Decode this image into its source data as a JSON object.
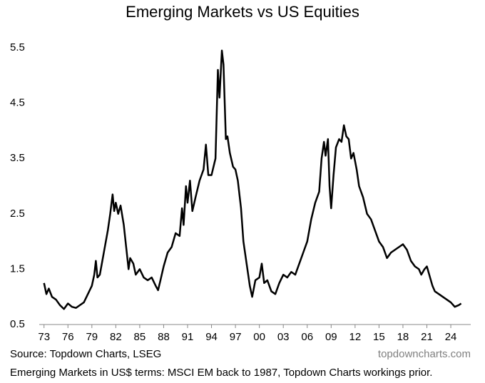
{
  "chart_data": {
    "type": "line",
    "title": "Emerging Markets vs US Equities",
    "source": "Source: Topdown Charts, LSEG",
    "watermark": "topdowncharts.com",
    "note": "Emerging Markets in US$ terms: MSCI EM back to 1987, Topdown Charts workings prior.",
    "x": [
      1973.0,
      1973.3,
      1973.6,
      1974.0,
      1974.5,
      1975.0,
      1975.5,
      1976.0,
      1976.5,
      1977.0,
      1977.5,
      1978.0,
      1978.5,
      1979.0,
      1979.3,
      1979.5,
      1979.7,
      1980.0,
      1980.5,
      1981.0,
      1981.3,
      1981.6,
      1981.8,
      1982.0,
      1982.3,
      1982.6,
      1983.0,
      1983.3,
      1983.6,
      1983.8,
      1984.2,
      1984.5,
      1985.0,
      1985.5,
      1986.0,
      1986.5,
      1987.0,
      1987.3,
      1987.6,
      1988.0,
      1988.5,
      1989.0,
      1989.5,
      1990.0,
      1990.3,
      1990.5,
      1990.8,
      1991.0,
      1991.3,
      1991.6,
      1992.0,
      1992.5,
      1993.0,
      1993.3,
      1993.6,
      1994.0,
      1994.5,
      1994.8,
      1995.0,
      1995.3,
      1995.5,
      1995.8,
      1996.0,
      1996.3,
      1996.7,
      1997.0,
      1997.3,
      1997.7,
      1998.0,
      1998.4,
      1998.8,
      1999.1,
      1999.5,
      2000.0,
      2000.3,
      2000.6,
      2001.0,
      2001.5,
      2002.0,
      2002.5,
      2003.0,
      2003.5,
      2004.0,
      2004.5,
      2005.0,
      2005.5,
      2006.0,
      2006.5,
      2007.0,
      2007.5,
      2007.8,
      2008.1,
      2008.3,
      2008.6,
      2008.8,
      2009.0,
      2009.3,
      2009.6,
      2010.0,
      2010.3,
      2010.6,
      2010.9,
      2011.2,
      2011.5,
      2011.8,
      2012.2,
      2012.5,
      2013.0,
      2013.5,
      2014.0,
      2014.5,
      2015.0,
      2015.5,
      2016.0,
      2016.5,
      2017.0,
      2017.5,
      2018.0,
      2018.5,
      2019.0,
      2019.5,
      2020.0,
      2020.3,
      2020.7,
      2021.0,
      2021.3,
      2021.7,
      2022.0,
      2022.5,
      2023.0,
      2023.5,
      2024.0,
      2024.5,
      2025.0,
      2025.3
    ],
    "series": [
      {
        "name": "EM vs US",
        "color": "#000000",
        "values": [
          1.25,
          1.05,
          1.15,
          1.0,
          0.95,
          0.85,
          0.78,
          0.88,
          0.82,
          0.8,
          0.85,
          0.9,
          1.05,
          1.2,
          1.4,
          1.65,
          1.35,
          1.4,
          1.8,
          2.2,
          2.5,
          2.85,
          2.55,
          2.7,
          2.5,
          2.65,
          2.3,
          1.9,
          1.5,
          1.7,
          1.6,
          1.4,
          1.5,
          1.35,
          1.3,
          1.35,
          1.2,
          1.12,
          1.3,
          1.55,
          1.8,
          1.9,
          2.15,
          2.1,
          2.6,
          2.3,
          3.0,
          2.7,
          3.1,
          2.55,
          2.8,
          3.1,
          3.3,
          3.75,
          3.2,
          3.2,
          3.5,
          5.1,
          4.6,
          5.45,
          5.2,
          3.85,
          3.9,
          3.6,
          3.35,
          3.3,
          3.1,
          2.6,
          2.0,
          1.6,
          1.2,
          1.0,
          1.3,
          1.35,
          1.6,
          1.25,
          1.3,
          1.1,
          1.05,
          1.25,
          1.4,
          1.35,
          1.45,
          1.4,
          1.6,
          1.8,
          2.0,
          2.4,
          2.7,
          2.9,
          3.5,
          3.8,
          3.55,
          3.85,
          3.0,
          2.6,
          3.2,
          3.7,
          3.85,
          3.8,
          4.1,
          3.9,
          3.85,
          3.5,
          3.6,
          3.3,
          3.0,
          2.8,
          2.5,
          2.4,
          2.2,
          2.0,
          1.9,
          1.7,
          1.8,
          1.85,
          1.9,
          1.95,
          1.85,
          1.65,
          1.55,
          1.5,
          1.4,
          1.5,
          1.55,
          1.4,
          1.2,
          1.1,
          1.05,
          1.0,
          0.95,
          0.9,
          0.82,
          0.85,
          0.88
        ]
      }
    ],
    "xlim": [
      1972.4,
      2026.5
    ],
    "xticks": [
      {
        "value": 1973,
        "label": "73"
      },
      {
        "value": 1976,
        "label": "76"
      },
      {
        "value": 1979,
        "label": "79"
      },
      {
        "value": 1982,
        "label": "82"
      },
      {
        "value": 1985,
        "label": "85"
      },
      {
        "value": 1988,
        "label": "88"
      },
      {
        "value": 1991,
        "label": "91"
      },
      {
        "value": 1994,
        "label": "94"
      },
      {
        "value": 1997,
        "label": "97"
      },
      {
        "value": 2000,
        "label": "00"
      },
      {
        "value": 2003,
        "label": "03"
      },
      {
        "value": 2006,
        "label": "06"
      },
      {
        "value": 2009,
        "label": "09"
      },
      {
        "value": 2012,
        "label": "12"
      },
      {
        "value": 2015,
        "label": "15"
      },
      {
        "value": 2018,
        "label": "18"
      },
      {
        "value": 2021,
        "label": "21"
      },
      {
        "value": 2024,
        "label": "24"
      }
    ],
    "ylim": [
      0.5,
      5.5
    ],
    "yticks": [
      0.5,
      1.5,
      2.5,
      3.5,
      4.5,
      5.5
    ]
  }
}
